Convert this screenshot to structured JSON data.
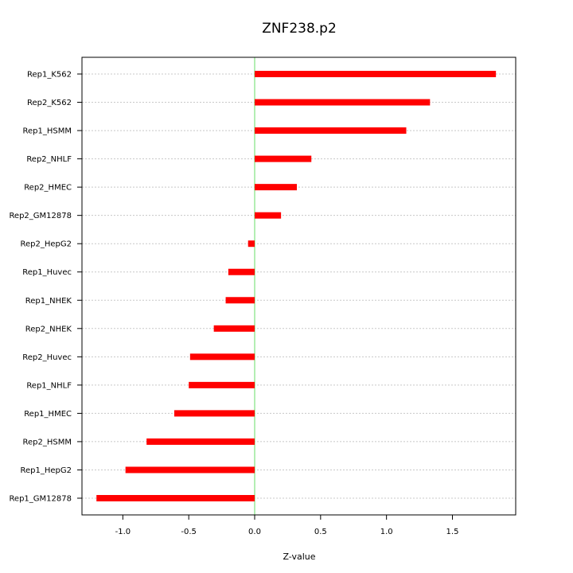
{
  "chart_data": {
    "type": "bar",
    "orientation": "horizontal",
    "title": "ZNF238.p2",
    "xlabel": "Z-value",
    "ylabel": "",
    "xlim": [
      -1.31,
      1.98
    ],
    "xticks": [
      "-1.0",
      "-0.5",
      "0.0",
      "0.5",
      "1.0",
      "1.5"
    ],
    "xtick_values": [
      -1.0,
      -0.5,
      0.0,
      0.5,
      1.0,
      1.5
    ],
    "grid": "horizontal dotted",
    "bar_color": "#ff0000",
    "zero_line_color": "#66dd66",
    "categories": [
      "Rep1_K562",
      "Rep2_K562",
      "Rep1_HSMM",
      "Rep2_NHLF",
      "Rep2_HMEC",
      "Rep2_GM12878",
      "Rep2_HepG2",
      "Rep1_Huvec",
      "Rep1_NHEK",
      "Rep2_NHEK",
      "Rep2_Huvec",
      "Rep1_NHLF",
      "Rep1_HMEC",
      "Rep2_HSMM",
      "Rep1_HepG2",
      "Rep1_GM12878"
    ],
    "values": [
      1.83,
      1.33,
      1.15,
      0.43,
      0.32,
      0.2,
      -0.05,
      -0.2,
      -0.22,
      -0.31,
      -0.49,
      -0.5,
      -0.61,
      -0.82,
      -0.98,
      -1.2
    ]
  }
}
